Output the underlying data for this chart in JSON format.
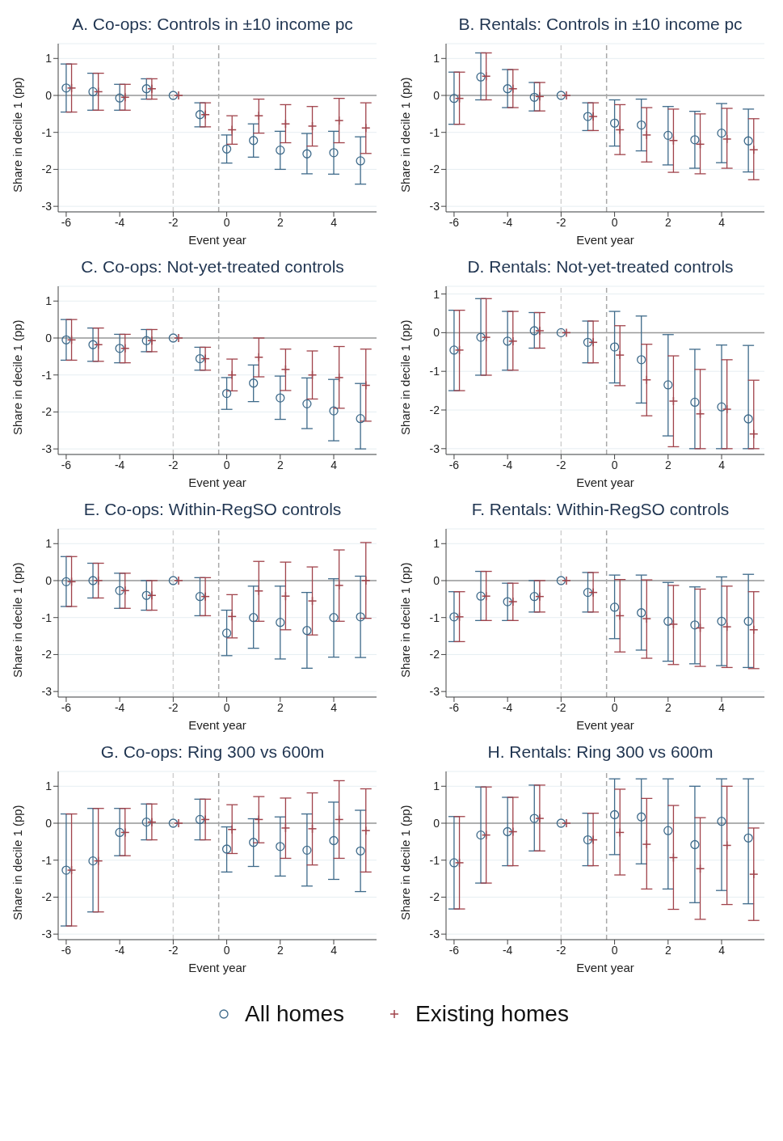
{
  "chart_data": [
    {
      "type": "scatter",
      "title": "A. Co-ops: Controls in ±10 income pc",
      "xlabel": "Event year",
      "ylabel": "Share in decile 1 (pp)",
      "xlim": [
        -6.3,
        5.6
      ],
      "ylim": [
        -3.15,
        1.4
      ],
      "xticks": [
        -6,
        -4,
        -2,
        0,
        2,
        4
      ],
      "yticks": [
        -3,
        -2,
        -1,
        0,
        1
      ],
      "grid": "y",
      "ref_lines": [
        {
          "axis": "y",
          "value": 0,
          "color": "#999999",
          "line_style": "solid"
        },
        {
          "axis": "x",
          "value": -2,
          "color": "#d0d0d0",
          "line_style": "dashed"
        },
        {
          "axis": "x",
          "value": -0.3,
          "color": "#a8a8a8",
          "line_style": "dashed"
        }
      ],
      "series": [
        {
          "color": "#3e6a8a",
          "marker": "circle",
          "x": [
            -6,
            -5,
            -4,
            -3,
            -2,
            -1,
            0,
            1,
            2,
            3,
            4,
            5
          ],
          "values": [
            0.2,
            0.1,
            -0.07,
            0.18,
            0,
            -0.52,
            -1.45,
            -1.22,
            -1.48,
            -1.58,
            -1.55,
            -1.77
          ],
          "errors": [
            [
              -0.45,
              0.85
            ],
            [
              -0.4,
              0.6
            ],
            [
              -0.4,
              0.3
            ],
            [
              -0.1,
              0.45
            ],
            null,
            [
              -0.85,
              -0.2
            ],
            [
              -1.83,
              -1.07
            ],
            [
              -1.67,
              -0.77
            ],
            [
              -2.0,
              -0.97
            ],
            [
              -2.12,
              -1.03
            ],
            [
              -2.13,
              -0.97
            ],
            [
              -2.4,
              -1.12
            ]
          ]
        },
        {
          "color": "#a0434b",
          "marker": "cross",
          "x": [
            -5.8,
            -4.8,
            -3.8,
            -2.8,
            -1.8,
            -0.8,
            0.2,
            1.2,
            2.2,
            3.2,
            4.2,
            5.2
          ],
          "values": [
            0.2,
            0.1,
            -0.05,
            0.18,
            0,
            -0.52,
            -0.93,
            -0.55,
            -0.77,
            -0.83,
            -0.68,
            -0.88
          ],
          "errors": [
            [
              -0.45,
              0.85
            ],
            [
              -0.4,
              0.6
            ],
            [
              -0.4,
              0.3
            ],
            [
              -0.1,
              0.45
            ],
            null,
            [
              -0.85,
              -0.2
            ],
            [
              -1.32,
              -0.55
            ],
            [
              -1.02,
              -0.1
            ],
            [
              -1.28,
              -0.25
            ],
            [
              -1.37,
              -0.3
            ],
            [
              -1.28,
              -0.08
            ],
            [
              -1.57,
              -0.2
            ]
          ]
        }
      ]
    },
    {
      "type": "scatter",
      "title": "B. Rentals: Controls in ±10 income pc",
      "xlabel": "Event year",
      "ylabel": "Share in decile 1 (pp)",
      "xlim": [
        -6.3,
        5.6
      ],
      "ylim": [
        -3.15,
        1.4
      ],
      "xticks": [
        -6,
        -4,
        -2,
        0,
        2,
        4
      ],
      "yticks": [
        -3,
        -2,
        -1,
        0,
        1
      ],
      "grid": "y",
      "ref_lines": [
        {
          "axis": "y",
          "value": 0,
          "color": "#999999",
          "line_style": "solid"
        },
        {
          "axis": "x",
          "value": -2,
          "color": "#d0d0d0",
          "line_style": "dashed"
        },
        {
          "axis": "x",
          "value": -0.3,
          "color": "#a8a8a8",
          "line_style": "dashed"
        }
      ],
      "series": [
        {
          "color": "#3e6a8a",
          "marker": "circle",
          "x": [
            -6,
            -5,
            -4,
            -3,
            -2,
            -1,
            0,
            1,
            2,
            3,
            4,
            5
          ],
          "values": [
            -0.08,
            0.5,
            0.18,
            -0.05,
            0,
            -0.57,
            -0.75,
            -0.8,
            -1.08,
            -1.2,
            -1.02,
            -1.23
          ],
          "errors": [
            [
              -0.78,
              0.63
            ],
            [
              -0.12,
              1.15
            ],
            [
              -0.33,
              0.7
            ],
            [
              -0.42,
              0.35
            ],
            null,
            [
              -0.95,
              -0.2
            ],
            [
              -1.37,
              -0.12
            ],
            [
              -1.5,
              -0.1
            ],
            [
              -1.88,
              -0.3
            ],
            [
              -1.97,
              -0.43
            ],
            [
              -1.82,
              -0.22
            ],
            [
              -2.07,
              -0.37
            ]
          ]
        },
        {
          "color": "#a0434b",
          "marker": "cross",
          "x": [
            -5.8,
            -4.8,
            -3.8,
            -2.8,
            -1.8,
            -0.8,
            0.2,
            1.2,
            2.2,
            3.2,
            4.2,
            5.2
          ],
          "values": [
            -0.08,
            0.52,
            0.18,
            -0.03,
            0,
            -0.57,
            -0.93,
            -1.07,
            -1.22,
            -1.32,
            -1.18,
            -1.47
          ],
          "errors": [
            [
              -0.78,
              0.63
            ],
            [
              -0.12,
              1.15
            ],
            [
              -0.33,
              0.7
            ],
            [
              -0.42,
              0.35
            ],
            null,
            [
              -0.95,
              -0.2
            ],
            [
              -1.6,
              -0.25
            ],
            [
              -1.8,
              -0.33
            ],
            [
              -2.08,
              -0.37
            ],
            [
              -2.12,
              -0.5
            ],
            [
              -1.97,
              -0.35
            ],
            [
              -2.28,
              -0.63
            ]
          ]
        }
      ]
    },
    {
      "type": "scatter",
      "title": "C. Co-ops: Not-yet-treated controls",
      "xlabel": "Event year",
      "ylabel": "Share in decile 1 (pp)",
      "xlim": [
        -6.3,
        5.6
      ],
      "ylim": [
        -3.15,
        1.4
      ],
      "xticks": [
        -6,
        -4,
        -2,
        0,
        2,
        4
      ],
      "yticks": [
        -3,
        -2,
        -1,
        0,
        1
      ],
      "grid": "y",
      "ref_lines": [
        {
          "axis": "y",
          "value": 0,
          "color": "#999999",
          "line_style": "solid"
        },
        {
          "axis": "x",
          "value": -2,
          "color": "#d0d0d0",
          "line_style": "dashed"
        },
        {
          "axis": "x",
          "value": -0.3,
          "color": "#a8a8a8",
          "line_style": "dashed"
        }
      ],
      "series": [
        {
          "color": "#3e6a8a",
          "marker": "circle",
          "x": [
            -6,
            -5,
            -4,
            -3,
            -2,
            -1,
            0,
            1,
            2,
            3,
            4,
            5
          ],
          "values": [
            -0.05,
            -0.18,
            -0.28,
            -0.07,
            0,
            -0.56,
            -1.5,
            -1.22,
            -1.62,
            -1.78,
            -1.97,
            -2.18
          ],
          "errors": [
            [
              -0.6,
              0.5
            ],
            [
              -0.63,
              0.27
            ],
            [
              -0.67,
              0.1
            ],
            [
              -0.37,
              0.23
            ],
            null,
            [
              -0.87,
              -0.25
            ],
            [
              -1.93,
              -1.07
            ],
            [
              -1.72,
              -0.73
            ],
            [
              -2.2,
              -1.03
            ],
            [
              -2.45,
              -1.08
            ],
            [
              -2.78,
              -1.12
            ],
            [
              -3.0,
              -1.23
            ]
          ]
        },
        {
          "color": "#a0434b",
          "marker": "cross",
          "x": [
            -5.8,
            -4.8,
            -3.8,
            -2.8,
            -1.8,
            -0.8,
            0.2,
            1.2,
            2.2,
            3.2,
            4.2,
            5.2
          ],
          "values": [
            -0.05,
            -0.18,
            -0.28,
            -0.07,
            0,
            -0.56,
            -1.0,
            -0.52,
            -0.85,
            -1.0,
            -1.07,
            -1.28
          ],
          "errors": [
            [
              -0.6,
              0.5
            ],
            [
              -0.63,
              0.27
            ],
            [
              -0.67,
              0.1
            ],
            [
              -0.37,
              0.23
            ],
            null,
            [
              -0.87,
              -0.25
            ],
            [
              -1.43,
              -0.57
            ],
            [
              -1.05,
              0.0
            ],
            [
              -1.42,
              -0.3
            ],
            [
              -1.65,
              -0.35
            ],
            [
              -1.9,
              -0.23
            ],
            [
              -2.25,
              -0.3
            ]
          ]
        }
      ]
    },
    {
      "type": "scatter",
      "title": "D. Rentals: Not-yet-treated controls",
      "xlabel": "Event year",
      "ylabel": "Share in decile 1 (pp)",
      "xlim": [
        -6.3,
        5.6
      ],
      "ylim": [
        -3.15,
        1.2
      ],
      "xticks": [
        -6,
        -4,
        -2,
        0,
        2,
        4
      ],
      "yticks": [
        -3,
        -2,
        -1,
        0,
        1
      ],
      "grid": "y",
      "ref_lines": [
        {
          "axis": "y",
          "value": 0,
          "color": "#999999",
          "line_style": "solid"
        },
        {
          "axis": "x",
          "value": -2,
          "color": "#d0d0d0",
          "line_style": "dashed"
        },
        {
          "axis": "x",
          "value": -0.3,
          "color": "#a8a8a8",
          "line_style": "dashed"
        }
      ],
      "series": [
        {
          "color": "#3e6a8a",
          "marker": "circle",
          "x": [
            -6,
            -5,
            -4,
            -3,
            -2,
            -1,
            0,
            1,
            2,
            3,
            4,
            5
          ],
          "values": [
            -0.45,
            -0.12,
            -0.22,
            0.05,
            0,
            -0.25,
            -0.37,
            -0.7,
            -1.35,
            -1.8,
            -1.92,
            -2.23
          ],
          "errors": [
            [
              -1.5,
              0.58
            ],
            [
              -1.1,
              0.88
            ],
            [
              -0.97,
              0.55
            ],
            [
              -0.4,
              0.52
            ],
            null,
            [
              -0.78,
              0.3
            ],
            [
              -1.3,
              0.55
            ],
            [
              -1.82,
              0.43
            ],
            [
              -2.67,
              -0.05
            ],
            [
              -3.0,
              -0.43
            ],
            [
              -3.0,
              -0.32
            ],
            [
              -3.0,
              -0.33
            ]
          ]
        },
        {
          "color": "#a0434b",
          "marker": "cross",
          "x": [
            -5.8,
            -4.8,
            -3.8,
            -2.8,
            -1.8,
            -0.8,
            0.2,
            1.2,
            2.2,
            3.2,
            4.2,
            5.2
          ],
          "values": [
            -0.45,
            -0.12,
            -0.22,
            0.05,
            0,
            -0.25,
            -0.58,
            -1.22,
            -1.77,
            -2.1,
            -1.98,
            -2.62
          ],
          "errors": [
            [
              -1.5,
              0.58
            ],
            [
              -1.1,
              0.88
            ],
            [
              -0.97,
              0.55
            ],
            [
              -0.4,
              0.52
            ],
            null,
            [
              -0.78,
              0.3
            ],
            [
              -1.37,
              0.18
            ],
            [
              -2.15,
              -0.3
            ],
            [
              -2.95,
              -0.6
            ],
            [
              -3.0,
              -0.95
            ],
            [
              -3.0,
              -0.7
            ],
            [
              -3.0,
              -1.23
            ]
          ]
        }
      ]
    },
    {
      "type": "scatter",
      "title": "E. Co-ops: Within-RegSO controls",
      "xlabel": "Event year",
      "ylabel": "Share in decile 1 (pp)",
      "xlim": [
        -6.3,
        5.6
      ],
      "ylim": [
        -3.15,
        1.4
      ],
      "xticks": [
        -6,
        -4,
        -2,
        0,
        2,
        4
      ],
      "yticks": [
        -3,
        -2,
        -1,
        0,
        1
      ],
      "grid": "y",
      "ref_lines": [
        {
          "axis": "y",
          "value": 0,
          "color": "#999999",
          "line_style": "solid"
        },
        {
          "axis": "x",
          "value": -2,
          "color": "#d0d0d0",
          "line_style": "dashed"
        },
        {
          "axis": "x",
          "value": -0.3,
          "color": "#a8a8a8",
          "line_style": "dashed"
        }
      ],
      "series": [
        {
          "color": "#3e6a8a",
          "marker": "circle",
          "x": [
            -6,
            -5,
            -4,
            -3,
            -2,
            -1,
            0,
            1,
            2,
            3,
            4,
            5
          ],
          "values": [
            -0.03,
            0.0,
            -0.27,
            -0.4,
            0,
            -0.43,
            -1.42,
            -1.0,
            -1.13,
            -1.35,
            -1.0,
            -0.98
          ],
          "errors": [
            [
              -0.7,
              0.65
            ],
            [
              -0.47,
              0.47
            ],
            [
              -0.75,
              0.2
            ],
            [
              -0.8,
              0.0
            ],
            null,
            [
              -0.95,
              0.08
            ],
            [
              -2.03,
              -0.8
            ],
            [
              -1.83,
              -0.15
            ],
            [
              -2.12,
              -0.15
            ],
            [
              -2.37,
              -0.32
            ],
            [
              -2.07,
              0.05
            ],
            [
              -2.08,
              0.12
            ]
          ]
        },
        {
          "color": "#a0434b",
          "marker": "cross",
          "x": [
            -5.8,
            -4.8,
            -3.8,
            -2.8,
            -1.8,
            -0.8,
            0.2,
            1.2,
            2.2,
            3.2,
            4.2,
            5.2
          ],
          "values": [
            -0.03,
            0.0,
            -0.27,
            -0.4,
            0,
            -0.43,
            -0.97,
            -0.28,
            -0.42,
            -0.55,
            -0.13,
            0.0
          ],
          "errors": [
            [
              -0.7,
              0.65
            ],
            [
              -0.47,
              0.47
            ],
            [
              -0.75,
              0.2
            ],
            [
              -0.8,
              0.0
            ],
            null,
            [
              -0.95,
              0.08
            ],
            [
              -1.55,
              -0.38
            ],
            [
              -1.1,
              0.52
            ],
            [
              -1.33,
              0.5
            ],
            [
              -1.47,
              0.37
            ],
            [
              -1.1,
              0.83
            ],
            [
              -1.02,
              1.03
            ]
          ]
        }
      ]
    },
    {
      "type": "scatter",
      "title": "F. Rentals: Within-RegSO controls",
      "xlabel": "Event year",
      "ylabel": "Share in decile 1 (pp)",
      "xlim": [
        -6.3,
        5.6
      ],
      "ylim": [
        -3.15,
        1.4
      ],
      "xticks": [
        -6,
        -4,
        -2,
        0,
        2,
        4
      ],
      "yticks": [
        -3,
        -2,
        -1,
        0,
        1
      ],
      "grid": "y",
      "ref_lines": [
        {
          "axis": "y",
          "value": 0,
          "color": "#999999",
          "line_style": "solid"
        },
        {
          "axis": "x",
          "value": -2,
          "color": "#d0d0d0",
          "line_style": "dashed"
        },
        {
          "axis": "x",
          "value": -0.3,
          "color": "#a8a8a8",
          "line_style": "dashed"
        }
      ],
      "series": [
        {
          "color": "#3e6a8a",
          "marker": "circle",
          "x": [
            -6,
            -5,
            -4,
            -3,
            -2,
            -1,
            0,
            1,
            2,
            3,
            4,
            5
          ],
          "values": [
            -0.98,
            -0.42,
            -0.57,
            -0.43,
            0,
            -0.32,
            -0.72,
            -0.87,
            -1.1,
            -1.2,
            -1.1,
            -1.1
          ],
          "errors": [
            [
              -1.65,
              -0.3
            ],
            [
              -1.08,
              0.25
            ],
            [
              -1.08,
              -0.07
            ],
            [
              -0.85,
              0.0
            ],
            null,
            [
              -0.85,
              0.22
            ],
            [
              -1.57,
              0.15
            ],
            [
              -1.88,
              0.15
            ],
            [
              -2.18,
              -0.05
            ],
            [
              -2.25,
              -0.17
            ],
            [
              -2.3,
              0.1
            ],
            [
              -2.35,
              0.17
            ]
          ]
        },
        {
          "color": "#a0434b",
          "marker": "cross",
          "x": [
            -5.8,
            -4.8,
            -3.8,
            -2.8,
            -1.8,
            -0.8,
            0.2,
            1.2,
            2.2,
            3.2,
            4.2,
            5.2
          ],
          "values": [
            -0.98,
            -0.42,
            -0.57,
            -0.43,
            0,
            -0.32,
            -0.95,
            -1.03,
            -1.18,
            -1.28,
            -1.25,
            -1.33
          ],
          "errors": [
            [
              -1.65,
              -0.3
            ],
            [
              -1.08,
              0.25
            ],
            [
              -1.08,
              -0.07
            ],
            [
              -0.85,
              0.0
            ],
            null,
            [
              -0.85,
              0.22
            ],
            [
              -1.93,
              0.03
            ],
            [
              -2.1,
              0.02
            ],
            [
              -2.27,
              -0.13
            ],
            [
              -2.32,
              -0.23
            ],
            [
              -2.35,
              -0.15
            ],
            [
              -2.38,
              -0.3
            ]
          ]
        }
      ]
    },
    {
      "type": "scatter",
      "title": "G. Co-ops: Ring 300 vs 600m",
      "xlabel": "Event year",
      "ylabel": "Share in decile 1 (pp)",
      "xlim": [
        -6.3,
        5.6
      ],
      "ylim": [
        -3.15,
        1.4
      ],
      "xticks": [
        -6,
        -4,
        -2,
        0,
        2,
        4
      ],
      "yticks": [
        -3,
        -2,
        -1,
        0,
        1
      ],
      "grid": "y",
      "ref_lines": [
        {
          "axis": "y",
          "value": 0,
          "color": "#999999",
          "line_style": "solid"
        },
        {
          "axis": "x",
          "value": -2,
          "color": "#d0d0d0",
          "line_style": "dashed"
        },
        {
          "axis": "x",
          "value": -0.3,
          "color": "#a8a8a8",
          "line_style": "dashed"
        }
      ],
      "series": [
        {
          "color": "#3e6a8a",
          "marker": "circle",
          "x": [
            -6,
            -5,
            -4,
            -3,
            -2,
            -1,
            0,
            1,
            2,
            3,
            4,
            5
          ],
          "values": [
            -1.27,
            -1.02,
            -0.25,
            0.03,
            0,
            0.1,
            -0.7,
            -0.52,
            -0.63,
            -0.73,
            -0.47,
            -0.75
          ],
          "errors": [
            [
              -2.78,
              0.25
            ],
            [
              -2.4,
              0.4
            ],
            [
              -0.88,
              0.4
            ],
            [
              -0.45,
              0.52
            ],
            null,
            [
              -0.45,
              0.65
            ],
            [
              -1.32,
              -0.1
            ],
            [
              -1.17,
              0.12
            ],
            [
              -1.43,
              0.17
            ],
            [
              -1.7,
              0.25
            ],
            [
              -1.52,
              0.57
            ],
            [
              -1.85,
              0.35
            ]
          ]
        },
        {
          "color": "#a0434b",
          "marker": "cross",
          "x": [
            -5.8,
            -4.8,
            -3.8,
            -2.8,
            -1.8,
            -0.8,
            0.2,
            1.2,
            2.2,
            3.2,
            4.2,
            5.2
          ],
          "values": [
            -1.27,
            -1.02,
            -0.25,
            0.03,
            0,
            0.1,
            -0.17,
            0.1,
            -0.13,
            -0.15,
            0.1,
            -0.2
          ],
          "errors": [
            [
              -2.78,
              0.25
            ],
            [
              -2.4,
              0.4
            ],
            [
              -0.88,
              0.4
            ],
            [
              -0.45,
              0.52
            ],
            null,
            [
              -0.45,
              0.65
            ],
            [
              -0.82,
              0.5
            ],
            [
              -0.53,
              0.72
            ],
            [
              -0.95,
              0.68
            ],
            [
              -1.13,
              0.82
            ],
            [
              -0.95,
              1.15
            ],
            [
              -1.32,
              0.93
            ]
          ]
        }
      ]
    },
    {
      "type": "scatter",
      "title": "H. Rentals: Ring 300 vs 600m",
      "xlabel": "Event year",
      "ylabel": "Share in decile 1 (pp)",
      "xlim": [
        -6.3,
        5.6
      ],
      "ylim": [
        -3.15,
        1.4
      ],
      "xticks": [
        -6,
        -4,
        -2,
        0,
        2,
        4
      ],
      "yticks": [
        -3,
        -2,
        -1,
        0,
        1
      ],
      "grid": "y",
      "legend": "bottom",
      "ref_lines": [
        {
          "axis": "y",
          "value": 0,
          "color": "#999999",
          "line_style": "solid"
        },
        {
          "axis": "x",
          "value": -2,
          "color": "#d0d0d0",
          "line_style": "dashed"
        },
        {
          "axis": "x",
          "value": -0.3,
          "color": "#a8a8a8",
          "line_style": "dashed"
        }
      ],
      "series": [
        {
          "name": "All homes",
          "color": "#3e6a8a",
          "marker": "circle",
          "x": [
            -6,
            -5,
            -4,
            -3,
            -2,
            -1,
            0,
            1,
            2,
            3,
            4,
            5
          ],
          "values": [
            -1.07,
            -0.32,
            -0.23,
            0.13,
            0,
            -0.45,
            0.23,
            0.17,
            -0.2,
            -0.58,
            0.05,
            -0.4
          ],
          "errors": [
            [
              -2.32,
              0.18
            ],
            [
              -1.62,
              0.98
            ],
            [
              -1.15,
              0.7
            ],
            [
              -0.75,
              1.03
            ],
            null,
            [
              -1.15,
              0.27
            ],
            [
              -0.85,
              1.2
            ],
            [
              -1.1,
              1.2
            ],
            [
              -1.78,
              1.2
            ],
            [
              -2.15,
              1.0
            ],
            [
              -1.82,
              1.2
            ],
            [
              -2.18,
              1.2
            ]
          ]
        },
        {
          "name": "Existing homes",
          "color": "#a0434b",
          "marker": "cross",
          "x": [
            -5.8,
            -4.8,
            -3.8,
            -2.8,
            -1.8,
            -0.8,
            0.2,
            1.2,
            2.2,
            3.2,
            4.2,
            5.2
          ],
          "values": [
            -1.07,
            -0.32,
            -0.23,
            0.13,
            0,
            -0.45,
            -0.25,
            -0.57,
            -0.93,
            -1.23,
            -0.6,
            -1.38
          ],
          "errors": [
            [
              -2.32,
              0.18
            ],
            [
              -1.62,
              0.98
            ],
            [
              -1.15,
              0.7
            ],
            [
              -0.75,
              1.03
            ],
            null,
            [
              -1.15,
              0.27
            ],
            [
              -1.4,
              0.92
            ],
            [
              -1.78,
              0.67
            ],
            [
              -2.33,
              0.48
            ],
            [
              -2.6,
              0.15
            ],
            [
              -2.2,
              1.0
            ],
            [
              -2.63,
              -0.13
            ]
          ]
        }
      ]
    }
  ]
}
